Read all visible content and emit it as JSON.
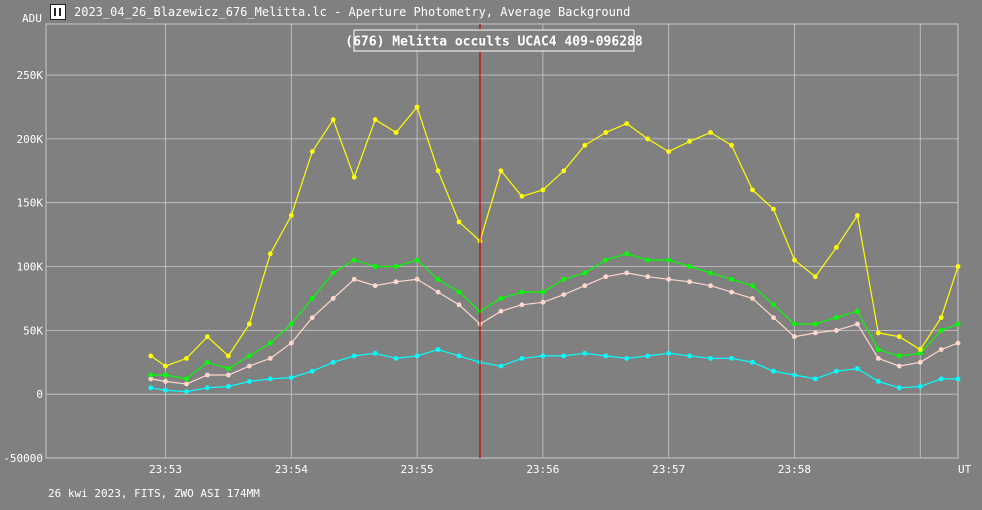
{
  "window": {
    "icon": "graph-icon",
    "title": "2023_04_26_Blazewicz_676_Melitta.lc - Aperture Photometry, Average Background"
  },
  "unit_label": "ADU",
  "footer": "26 kwi 2023, FITS, ZWO ASI 174MM",
  "colors": {
    "background": "#808080",
    "grid": "#c8c8c8",
    "target": "#ffff00",
    "comp1": "#00ff00",
    "comp2": "#ffd7cc",
    "comp3": "#00ffff",
    "cursor": "#cc0000"
  },
  "chart_data": {
    "type": "line",
    "title": "(676) Melitta occults UCAC4 409-096288",
    "x_label": "UT",
    "x_ticks": [
      "23:53",
      "23:54",
      "23:55",
      "23:56",
      "23:57",
      "23:58"
    ],
    "y_ticks": [
      "-50000",
      "0",
      "50K",
      "100K",
      "150K",
      "200K",
      "250K"
    ],
    "y_tick_values": [
      -50000,
      0,
      50000,
      100000,
      150000,
      200000,
      250000
    ],
    "xlim": [
      "23:52:03",
      "23:59:18"
    ],
    "ylim": [
      -50000,
      290000
    ],
    "grid": true,
    "cursor_time": "23:55:30",
    "x_time_ticks_seconds": [
      53,
      60,
      70,
      80,
      90,
      100,
      110,
      120,
      130,
      140,
      150,
      160,
      170,
      180,
      190,
      200,
      210,
      220,
      230,
      240,
      250,
      260,
      270,
      280,
      290,
      300,
      310,
      320,
      330,
      340,
      350,
      360,
      370,
      380,
      390,
      400,
      410,
      420,
      430,
      438
    ],
    "x_note": "x values in seconds after 23:52:00",
    "series": [
      {
        "values": [
          30000,
          22000,
          28000,
          45000,
          30000,
          55000,
          110000,
          140000,
          190000,
          215000,
          170000,
          215000,
          205000,
          225000,
          175000,
          135000,
          120000,
          175000,
          155000,
          160000,
          175000,
          195000,
          205000,
          212000,
          200000,
          190000,
          198000,
          205000,
          195000,
          160000,
          145000,
          105000,
          92000,
          115000,
          140000,
          48000,
          45000,
          35000,
          60000,
          100000
        ]
      },
      {
        "values": [
          15000,
          15000,
          12000,
          25000,
          20000,
          30000,
          40000,
          55000,
          75000,
          95000,
          105000,
          100000,
          100000,
          105000,
          90000,
          80000,
          65000,
          75000,
          80000,
          80000,
          90000,
          95000,
          105000,
          110000,
          105000,
          105000,
          100000,
          95000,
          90000,
          85000,
          70000,
          55000,
          55000,
          60000,
          65000,
          35000,
          30000,
          32000,
          50000,
          55000
        ]
      },
      {
        "values": [
          12000,
          10000,
          8000,
          15000,
          15000,
          22000,
          28000,
          40000,
          60000,
          75000,
          90000,
          85000,
          88000,
          90000,
          80000,
          70000,
          55000,
          65000,
          70000,
          72000,
          78000,
          85000,
          92000,
          95000,
          92000,
          90000,
          88000,
          85000,
          80000,
          75000,
          60000,
          45000,
          48000,
          50000,
          55000,
          28000,
          22000,
          25000,
          35000,
          40000
        ]
      },
      {
        "values": [
          5000,
          3000,
          2000,
          5000,
          6000,
          10000,
          12000,
          13000,
          18000,
          25000,
          30000,
          32000,
          28000,
          30000,
          35000,
          30000,
          25000,
          22000,
          28000,
          30000,
          30000,
          32000,
          30000,
          28000,
          30000,
          32000,
          30000,
          28000,
          28000,
          25000,
          18000,
          15000,
          12000,
          18000,
          20000,
          10000,
          5000,
          6000,
          12000,
          12000
        ]
      }
    ]
  }
}
